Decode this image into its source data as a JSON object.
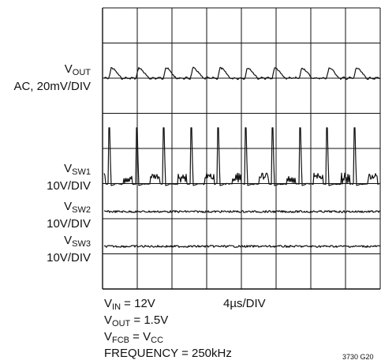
{
  "chart_data": {
    "type": "oscilloscope",
    "title": "",
    "grid": true,
    "divisions": {
      "x": 8,
      "y": 8
    },
    "traces": [
      {
        "name_main": "V",
        "name_sub": "OUT",
        "scale": "AC, 20mV/DIV",
        "waveform": "ripple",
        "pulses_per_screen": 9,
        "pulse_amplitude_div": 0.3
      },
      {
        "name_main": "V",
        "name_sub": "SW1",
        "scale": "10V/DIV",
        "waveform": "switching",
        "pulses_per_screen": 9,
        "pulse_amplitude_div": 1.6
      },
      {
        "name_main": "V",
        "name_sub": "SW2",
        "scale": "10V/DIV",
        "waveform": "flat-noise"
      },
      {
        "name_main": "V",
        "name_sub": "SW3",
        "scale": "10V/DIV",
        "waveform": "flat-noise"
      }
    ],
    "timebase": "4µs/DIV",
    "conditions": [
      {
        "main": "V",
        "sub": "IN",
        "rest": " = 12V"
      },
      {
        "main": "V",
        "sub": "OUT",
        "rest": " = 1.5V"
      },
      {
        "main": "V",
        "sub": "FCB",
        "rest": " = V",
        "sub2": "CC"
      },
      {
        "main": "FREQUENCY = 250kHz",
        "sub": "",
        "rest": ""
      }
    ],
    "figure_code": "3730 G20"
  }
}
